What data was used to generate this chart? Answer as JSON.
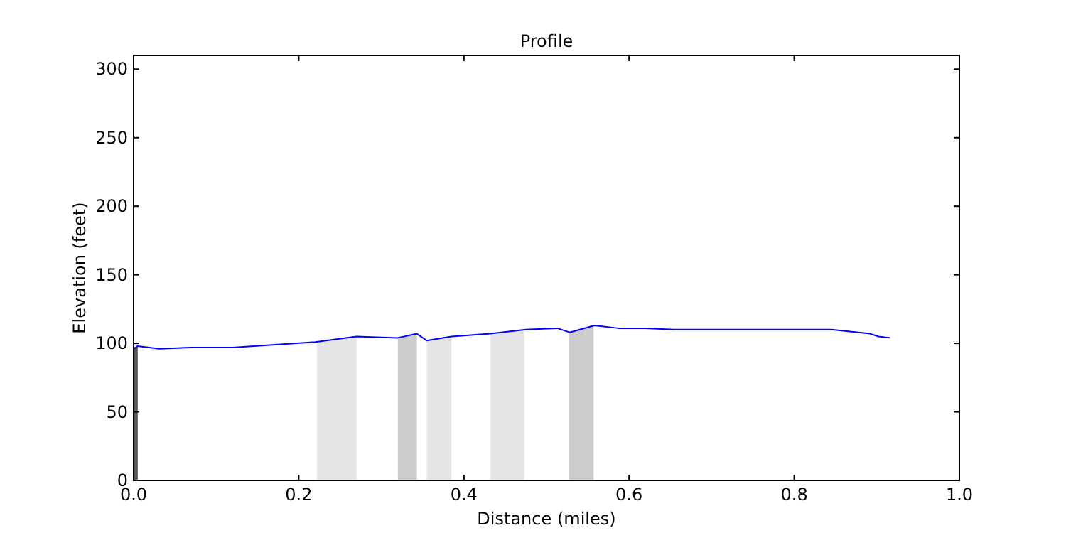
{
  "chart_data": {
    "type": "line",
    "title": "Profile",
    "xlabel": "Distance (miles)",
    "ylabel": "Elevation (feet)",
    "x": [
      0,
      0.005,
      0.031,
      0.07,
      0.12,
      0.22,
      0.27,
      0.32,
      0.343,
      0.355,
      0.385,
      0.432,
      0.475,
      0.513,
      0.528,
      0.558,
      0.587,
      0.62,
      0.654,
      0.845,
      0.892,
      0.902,
      0.916
    ],
    "series": [
      {
        "color": "#0000ff",
        "values": [
          96,
          98,
          96,
          97,
          97,
          101,
          105,
          104,
          107,
          102,
          105,
          107,
          110,
          111,
          108,
          113,
          111,
          111,
          110,
          110,
          107,
          105,
          104
        ]
      }
    ],
    "xlim": [
      0,
      1
    ],
    "ylim": [
      0,
      310
    ],
    "xticks": [
      {
        "value": 0,
        "label": "0.0"
      },
      0.2,
      0.4,
      0.6,
      0.8,
      {
        "value": 1,
        "label": "1.0"
      }
    ],
    "yticks": [
      0,
      50,
      100,
      150,
      200,
      250,
      300
    ],
    "bands": [
      {
        "axis": "x",
        "from": 0,
        "to": 0.005,
        "color": "#555555"
      },
      {
        "axis": "x",
        "from": 0.222,
        "to": 0.27,
        "color": "#e5e5e5"
      },
      {
        "axis": "x",
        "from": 0.32,
        "to": 0.343,
        "color": "#cccccc"
      },
      {
        "axis": "x",
        "from": 0.355,
        "to": 0.385,
        "color": "#e5e5e5"
      },
      {
        "axis": "x",
        "from": 0.432,
        "to": 0.473,
        "color": "#e5e5e5"
      },
      {
        "axis": "x",
        "from": 0.527,
        "to": 0.557,
        "color": "#cccccc"
      }
    ],
    "grid": false,
    "marker": "none",
    "line_style": "solid"
  }
}
